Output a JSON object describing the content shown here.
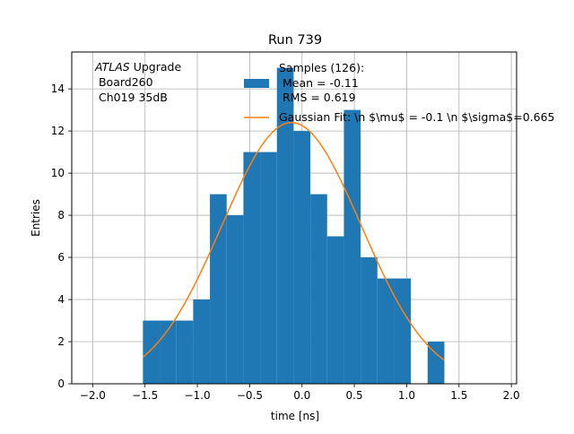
{
  "chart_data": {
    "type": "bar",
    "title": "Run 739",
    "xlabel": "time [ns]",
    "ylabel": "Entries",
    "xlim": [
      -2.2,
      2.05
    ],
    "ylim": [
      0,
      15.75
    ],
    "xticks": [
      -2.0,
      -1.5,
      -1.0,
      -0.5,
      0.0,
      0.5,
      1.0,
      1.5,
      2.0
    ],
    "xtick_labels": [
      "−2.0",
      "−1.5",
      "−1.0",
      "−0.5",
      "0.0",
      "0.5",
      "1.0",
      "1.5",
      "2.0"
    ],
    "yticks": [
      0,
      2,
      4,
      6,
      8,
      10,
      12,
      14
    ],
    "ytick_labels": [
      "0",
      "2",
      "4",
      "6",
      "8",
      "10",
      "12",
      "14"
    ],
    "grid": true,
    "annotation": {
      "italic": "ATLAS",
      "line1_rest": " Upgrade",
      "line2": " Board260",
      "line3": " Ch019 35dB"
    },
    "legend_position": "top-center",
    "histogram": {
      "name_lines": [
        "Samples (126):",
        " Mean = -0.11",
        " RMS = 0.619"
      ],
      "color": "#1f77b4",
      "bin_edges": [
        -1.52,
        -1.36,
        -1.2,
        -1.04,
        -0.88,
        -0.72,
        -0.56,
        -0.4,
        -0.24,
        -0.08,
        0.08,
        0.24,
        0.4,
        0.56,
        0.72,
        0.88,
        1.04,
        1.2,
        1.36
      ],
      "counts": [
        3,
        3,
        3,
        4,
        9,
        8,
        11,
        11,
        15,
        12,
        9,
        7,
        13,
        6,
        5,
        5,
        0,
        2
      ]
    },
    "fit": {
      "name": "Gaussian Fit: \\n $\\mu$ = -0.1 \\n $\\sigma$=0.665",
      "color": "#ff7f0e",
      "amplitude": 12.4,
      "mu": -0.1,
      "sigma": 0.665,
      "x_range": [
        -1.52,
        1.36
      ]
    }
  }
}
